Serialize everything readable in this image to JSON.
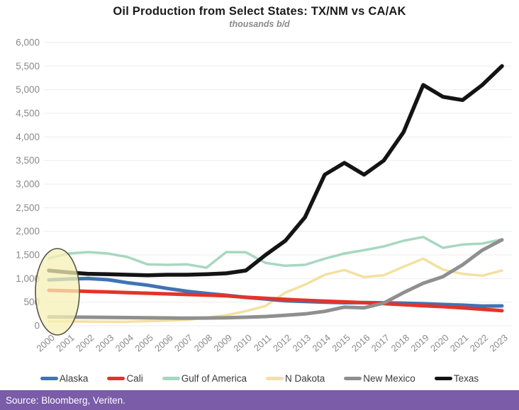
{
  "title": "Oil Production from Select States: TX/NM vs CA/AK",
  "subtitle": "thousands b/d",
  "footer": {
    "source_text": "Source: Bloomberg, Veriten.",
    "bg_color": "#7A5CA8",
    "text_color": "#FFFFFF"
  },
  "chart_data": {
    "type": "line",
    "title": "Oil Production from Select States: TX/NM vs CA/AK",
    "subtitle": "thousands b/d",
    "xlabel": "",
    "ylabel": "thousands b/d",
    "ylim": [
      0,
      6000
    ],
    "ytick_step": 500,
    "grid": true,
    "legend_position": "bottom",
    "x": [
      2000,
      2001,
      2002,
      2003,
      2004,
      2005,
      2006,
      2007,
      2008,
      2009,
      2010,
      2011,
      2012,
      2013,
      2014,
      2015,
      2016,
      2017,
      2018,
      2019,
      2020,
      2021,
      2022,
      2023
    ],
    "series": [
      {
        "name": "Alaska",
        "color": "#3F74B5",
        "stroke_width": 5,
        "values": [
          970,
          990,
          1000,
          975,
          910,
          860,
          790,
          730,
          685,
          645,
          600,
          565,
          530,
          515,
          500,
          487,
          490,
          486,
          478,
          466,
          450,
          437,
          415,
          420
        ]
      },
      {
        "name": "Cali",
        "color": "#E2342B",
        "stroke_width": 5,
        "values": [
          750,
          740,
          728,
          715,
          700,
          688,
          675,
          662,
          650,
          635,
          605,
          580,
          558,
          538,
          520,
          505,
          487,
          468,
          445,
          425,
          405,
          380,
          350,
          318
        ]
      },
      {
        "name": "Gulf of America",
        "color": "#A8D7C0",
        "stroke_width": 3.5,
        "values": [
          1430,
          1530,
          1560,
          1530,
          1455,
          1300,
          1290,
          1300,
          1230,
          1560,
          1555,
          1330,
          1270,
          1290,
          1420,
          1530,
          1600,
          1680,
          1800,
          1880,
          1650,
          1720,
          1740,
          1830
        ]
      },
      {
        "name": "N Dakota",
        "color": "#F4E0A0",
        "stroke_width": 3.5,
        "values": [
          88,
          90,
          88,
          86,
          86,
          97,
          110,
          125,
          172,
          220,
          310,
          420,
          700,
          870,
          1080,
          1180,
          1030,
          1070,
          1250,
          1420,
          1190,
          1100,
          1060,
          1170
        ]
      },
      {
        "name": "New Mexico",
        "color": "#8F8F8F",
        "stroke_width": 5,
        "values": [
          187,
          184,
          180,
          177,
          173,
          170,
          165,
          161,
          164,
          169,
          180,
          195,
          220,
          250,
          305,
          395,
          380,
          480,
          700,
          900,
          1040,
          1290,
          1600,
          1820
        ]
      },
      {
        "name": "Texas",
        "color": "#141414",
        "stroke_width": 5.5,
        "values": [
          1170,
          1130,
          1100,
          1090,
          1080,
          1070,
          1080,
          1080,
          1090,
          1110,
          1170,
          1500,
          1800,
          2300,
          3200,
          3450,
          3200,
          3500,
          4100,
          5100,
          4850,
          4780,
          5100,
          5500
        ]
      }
    ],
    "draw_order": [
      2,
      3,
      0,
      1,
      4,
      5
    ],
    "annotation": {
      "type": "ellipse-highlight",
      "covers_years": "2000-2001",
      "fill": "#F7F0B4",
      "fill_opacity": 0.75,
      "stroke": "#55544A"
    },
    "axis_label_color": "#8a8a8a",
    "gridline_color": "#efedec"
  }
}
